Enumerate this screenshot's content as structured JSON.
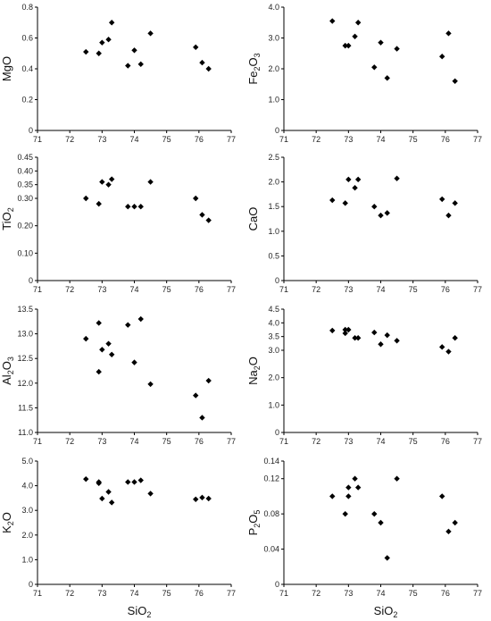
{
  "figure": {
    "xlabel_main": "SiO",
    "xlabel_sub": "2"
  },
  "chart_data": [
    {
      "type": "scatter",
      "ylabel_parts": [
        {
          "t": "MgO",
          "sub": false
        }
      ],
      "xlim": [
        71,
        77
      ],
      "ylim": [
        0,
        0.8
      ],
      "yticks": [
        "0",
        "0.2",
        "0.4",
        "0.6",
        "0.8"
      ],
      "xticks": [
        "71",
        "72",
        "73",
        "74",
        "75",
        "76",
        "77"
      ],
      "x": [
        72.5,
        72.9,
        73.0,
        73.2,
        73.3,
        73.8,
        74.0,
        74.2,
        74.5,
        75.9,
        76.1,
        76.3
      ],
      "y": [
        0.51,
        0.5,
        0.57,
        0.59,
        0.7,
        0.42,
        0.52,
        0.43,
        0.63,
        0.54,
        0.44,
        0.4
      ]
    },
    {
      "type": "scatter",
      "ylabel_parts": [
        {
          "t": "Fe",
          "sub": false
        },
        {
          "t": "2",
          "sub": true
        },
        {
          "t": "O",
          "sub": false
        },
        {
          "t": "3",
          "sub": true
        }
      ],
      "xlim": [
        71,
        77
      ],
      "ylim": [
        0,
        4.0
      ],
      "yticks": [
        "0",
        "1.0",
        "2.0",
        "3.0",
        "4.0"
      ],
      "xticks": [
        "71",
        "72",
        "73",
        "74",
        "75",
        "76",
        "77"
      ],
      "x": [
        72.5,
        72.9,
        73.0,
        73.2,
        73.3,
        73.8,
        74.0,
        74.2,
        74.5,
        75.9,
        76.1,
        76.3
      ],
      "y": [
        3.55,
        2.75,
        2.75,
        3.05,
        3.5,
        2.05,
        2.85,
        1.7,
        2.65,
        2.4,
        3.15,
        1.6
      ]
    },
    {
      "type": "scatter",
      "ylabel_parts": [
        {
          "t": "TiO",
          "sub": false
        },
        {
          "t": "2",
          "sub": true
        }
      ],
      "xlim": [
        71,
        77
      ],
      "ylim": [
        0,
        0.45
      ],
      "yticks": [
        "0",
        "0.10",
        "0.20",
        "0.30",
        "0.35",
        "0.40",
        "0.45"
      ],
      "ytick_values": [
        0,
        0.1,
        0.2,
        0.3,
        0.35,
        0.4,
        0.45
      ],
      "xticks": [
        "71",
        "72",
        "73",
        "74",
        "75",
        "76",
        "77"
      ],
      "x": [
        72.5,
        72.9,
        73.0,
        73.2,
        73.3,
        73.8,
        74.0,
        74.2,
        74.5,
        75.9,
        76.1,
        76.3
      ],
      "y": [
        0.3,
        0.28,
        0.36,
        0.35,
        0.37,
        0.27,
        0.27,
        0.27,
        0.36,
        0.3,
        0.24,
        0.22
      ]
    },
    {
      "type": "scatter",
      "ylabel_parts": [
        {
          "t": "CaO",
          "sub": false
        }
      ],
      "xlim": [
        71,
        77
      ],
      "ylim": [
        0,
        2.5
      ],
      "yticks": [
        "0",
        "0.5",
        "1.0",
        "1.5",
        "2.0",
        "2.5"
      ],
      "xticks": [
        "71",
        "72",
        "73",
        "74",
        "75",
        "76",
        "77"
      ],
      "x": [
        72.5,
        72.9,
        73.0,
        73.2,
        73.3,
        73.8,
        74.0,
        74.2,
        74.5,
        75.9,
        76.1,
        76.3
      ],
      "y": [
        1.63,
        1.57,
        2.05,
        1.88,
        2.05,
        1.5,
        1.32,
        1.37,
        2.07,
        1.65,
        1.32,
        1.57
      ]
    },
    {
      "type": "scatter",
      "ylabel_parts": [
        {
          "t": "Al",
          "sub": false
        },
        {
          "t": "2",
          "sub": true
        },
        {
          "t": "O",
          "sub": false
        },
        {
          "t": "3",
          "sub": true
        }
      ],
      "xlim": [
        71,
        77
      ],
      "ylim": [
        11.0,
        13.5
      ],
      "yticks": [
        "11.0",
        "11.5",
        "12.0",
        "12.5",
        "13.0",
        "13.5"
      ],
      "xticks": [
        "71",
        "72",
        "73",
        "74",
        "75",
        "76",
        "77"
      ],
      "x": [
        72.5,
        72.9,
        72.9,
        73.0,
        73.2,
        73.3,
        73.8,
        74.0,
        74.2,
        74.5,
        75.9,
        76.1,
        76.3
      ],
      "y": [
        12.9,
        13.22,
        12.23,
        12.68,
        12.8,
        12.58,
        13.18,
        12.42,
        13.3,
        11.98,
        11.75,
        11.3,
        12.05
      ]
    },
    {
      "type": "scatter",
      "ylabel_parts": [
        {
          "t": "Na",
          "sub": false
        },
        {
          "t": "2",
          "sub": true
        },
        {
          "t": "O",
          "sub": false
        }
      ],
      "xlim": [
        71,
        77
      ],
      "ylim": [
        0,
        4.5
      ],
      "yticks": [
        "0",
        "1.0",
        "2.0",
        "3.0",
        "3.5",
        "4.0",
        "4.5"
      ],
      "ytick_values": [
        0,
        1.0,
        2.0,
        3.0,
        3.5,
        4.0,
        4.5
      ],
      "xticks": [
        "71",
        "72",
        "73",
        "74",
        "75",
        "76",
        "77"
      ],
      "x": [
        72.5,
        72.9,
        72.9,
        73.0,
        73.2,
        73.3,
        73.8,
        74.0,
        74.2,
        74.5,
        75.9,
        76.1,
        76.3
      ],
      "y": [
        3.72,
        3.75,
        3.62,
        3.75,
        3.45,
        3.45,
        3.65,
        3.22,
        3.55,
        3.35,
        3.12,
        2.95,
        3.45
      ]
    },
    {
      "type": "scatter",
      "ylabel_parts": [
        {
          "t": "K",
          "sub": false
        },
        {
          "t": "2",
          "sub": true
        },
        {
          "t": "O",
          "sub": false
        }
      ],
      "xlim": [
        71,
        77
      ],
      "ylim": [
        0,
        5.0
      ],
      "yticks": [
        "0",
        "1.0",
        "2.0",
        "3.0",
        "4.0",
        "5.0"
      ],
      "xticks": [
        "71",
        "72",
        "73",
        "74",
        "75",
        "76",
        "77"
      ],
      "x": [
        72.5,
        72.9,
        72.9,
        73.0,
        73.2,
        73.3,
        73.8,
        74.0,
        74.2,
        74.5,
        75.9,
        76.1,
        76.3
      ],
      "y": [
        4.27,
        4.15,
        4.1,
        3.48,
        3.75,
        3.32,
        4.15,
        4.15,
        4.22,
        3.68,
        3.45,
        3.52,
        3.48
      ]
    },
    {
      "type": "scatter",
      "ylabel_parts": [
        {
          "t": "P",
          "sub": false
        },
        {
          "t": "2",
          "sub": true
        },
        {
          "t": "O",
          "sub": false
        },
        {
          "t": "5",
          "sub": true
        }
      ],
      "xlim": [
        71,
        77
      ],
      "ylim": [
        0,
        0.14
      ],
      "yticks": [
        "0",
        "0.04",
        "0.08",
        "0.12",
        "0.14"
      ],
      "ytick_values": [
        0,
        0.04,
        0.08,
        0.12,
        0.14
      ],
      "xticks": [
        "71",
        "72",
        "73",
        "74",
        "75",
        "76",
        "77"
      ],
      "x": [
        72.5,
        72.9,
        73.0,
        73.0,
        73.2,
        73.3,
        73.8,
        74.0,
        74.2,
        74.5,
        75.9,
        76.1,
        76.3
      ],
      "y": [
        0.1,
        0.08,
        0.1,
        0.11,
        0.12,
        0.11,
        0.08,
        0.07,
        0.03,
        0.12,
        0.1,
        0.06,
        0.07
      ]
    }
  ]
}
